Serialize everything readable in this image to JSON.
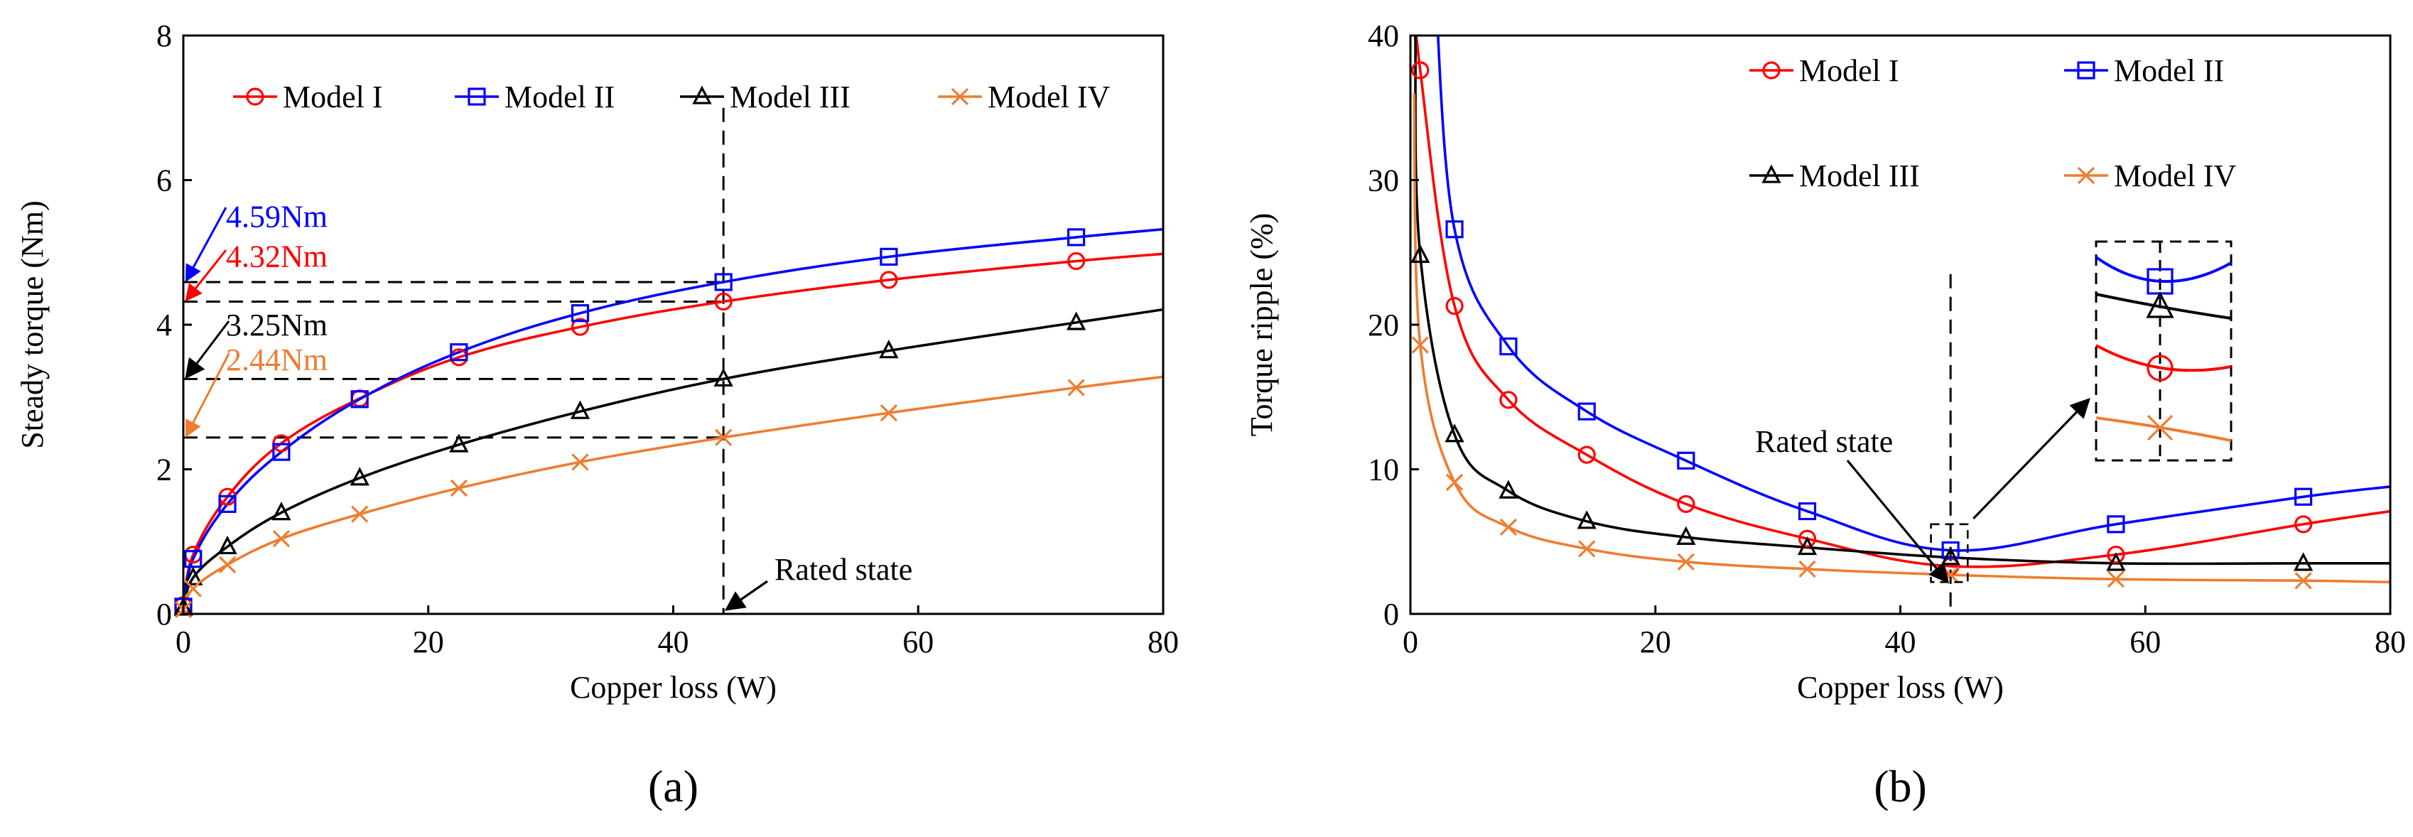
{
  "colors": {
    "model_1": "#ff0000",
    "model_2": "#0000ff",
    "model_3": "#000000",
    "model_4": "#ed7d31",
    "axis": "#000000",
    "background": "#ffffff"
  },
  "chart_data": [
    {
      "panel_label": "(a)",
      "type": "line",
      "xlabel": "Copper loss (W)",
      "ylabel": "Steady torque  (Nm)",
      "xlim": [
        0,
        80
      ],
      "ylim": [
        0,
        8
      ],
      "x_ticks": [
        "0",
        "20",
        "40",
        "60",
        "80"
      ],
      "y_ticks": [
        "0",
        "2",
        "4",
        "6",
        "8"
      ],
      "legend": {
        "placement": "top",
        "columns": 4
      },
      "series": [
        {
          "name": "Model I",
          "color": "#ff0000",
          "marker": "circle",
          "x": [
            0,
            0.8,
            3.6,
            8.0,
            14.4,
            22.5,
            32.4,
            44.1,
            57.6,
            72.9
          ],
          "y": [
            0.12,
            0.82,
            1.62,
            2.36,
            2.98,
            3.55,
            3.97,
            4.32,
            4.62,
            4.88
          ],
          "curve_end": 4.98
        },
        {
          "name": "Model II",
          "color": "#0000ff",
          "marker": "square",
          "x": [
            0,
            0.8,
            3.6,
            8.0,
            14.4,
            22.5,
            32.4,
            44.1,
            57.6,
            72.9
          ],
          "y": [
            0.1,
            0.76,
            1.52,
            2.24,
            2.97,
            3.62,
            4.16,
            4.59,
            4.94,
            5.21
          ],
          "curve_end": 5.32
        },
        {
          "name": "Model III",
          "color": "#000000",
          "marker": "triangle",
          "x": [
            0,
            0.8,
            3.6,
            8.0,
            14.4,
            22.5,
            32.4,
            44.1,
            57.6,
            72.9
          ],
          "y": [
            0.08,
            0.5,
            0.93,
            1.4,
            1.88,
            2.34,
            2.8,
            3.25,
            3.64,
            4.03
          ],
          "curve_end": 4.21
        },
        {
          "name": "Model IV",
          "color": "#ed7d31",
          "marker": "cross",
          "x": [
            0,
            0.8,
            3.6,
            8.0,
            14.4,
            22.5,
            32.4,
            44.1,
            57.6,
            72.9
          ],
          "y": [
            0.06,
            0.35,
            0.68,
            1.04,
            1.38,
            1.74,
            2.1,
            2.44,
            2.78,
            3.13
          ],
          "curve_end": 3.28
        }
      ],
      "annotations": [
        {
          "text": "4.59Nm",
          "value": 4.59,
          "color": "#0000ff"
        },
        {
          "text": "4.32Nm",
          "value": 4.32,
          "color": "#ff0000"
        },
        {
          "text": "3.25Nm",
          "value": 3.25,
          "color": "#000000"
        },
        {
          "text": "2.44Nm",
          "value": 2.44,
          "color": "#ed7d31"
        },
        {
          "text": "Rated state",
          "x_value": 44.1
        }
      ]
    },
    {
      "panel_label": "(b)",
      "type": "line",
      "xlabel": "Copper loss (W)",
      "ylabel": "Torque ripple  (%)",
      "xlim": [
        0,
        80
      ],
      "ylim": [
        0,
        40
      ],
      "x_ticks": [
        "0",
        "20",
        "40",
        "60",
        "80"
      ],
      "y_ticks": [
        "0",
        "10",
        "20",
        "30",
        "40"
      ],
      "legend": {
        "placement": "top-right",
        "columns": 2
      },
      "series": [
        {
          "name": "Model I",
          "color": "#ff0000",
          "marker": "circle",
          "x": [
            0.8,
            3.6,
            8.0,
            14.4,
            22.5,
            32.4,
            44.1,
            57.6,
            72.9
          ],
          "y": [
            37.6,
            21.3,
            14.8,
            11.0,
            7.6,
            5.2,
            3.3,
            4.1,
            6.2
          ],
          "curve_end": 7.1
        },
        {
          "name": "Model II",
          "color": "#0000ff",
          "marker": "square",
          "x": [
            3.6,
            8.0,
            14.4,
            22.5,
            32.4,
            44.1,
            57.6,
            72.9
          ],
          "y": [
            26.6,
            18.5,
            14.0,
            10.6,
            7.1,
            4.4,
            6.2,
            8.1
          ],
          "curve_end": 8.8
        },
        {
          "name": "Model III",
          "color": "#000000",
          "marker": "triangle",
          "x": [
            0.8,
            3.6,
            8.0,
            14.4,
            22.5,
            32.4,
            44.1,
            57.6,
            72.9
          ],
          "y": [
            24.8,
            12.4,
            8.5,
            6.4,
            5.3,
            4.6,
            3.9,
            3.5,
            3.5
          ],
          "curve_end": 3.5
        },
        {
          "name": "Model IV",
          "color": "#ed7d31",
          "marker": "cross",
          "x": [
            0.8,
            3.6,
            8.0,
            14.4,
            22.5,
            32.4,
            44.1,
            57.6,
            72.9
          ],
          "y": [
            18.6,
            9.1,
            6.0,
            4.5,
            3.6,
            3.1,
            2.7,
            2.4,
            2.3
          ],
          "curve_end": 2.2
        }
      ],
      "annotations": [
        {
          "text": "Rated state",
          "x_value": 44.1
        }
      ]
    }
  ]
}
